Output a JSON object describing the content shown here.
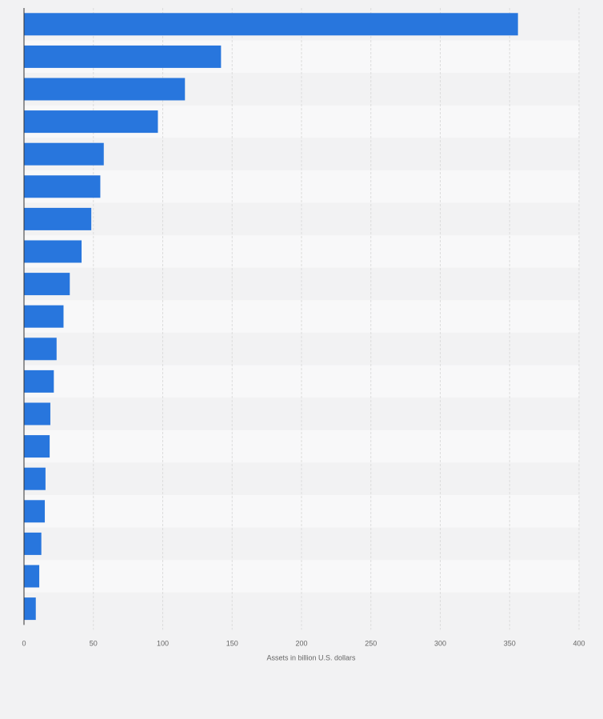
{
  "chart_data": {
    "type": "bar",
    "orientation": "horizontal",
    "title": "",
    "xlabel": "Assets in billion U.S. dollars",
    "ylabel": "",
    "xlim": [
      0,
      400
    ],
    "x_ticks": [
      0,
      50,
      100,
      150,
      200,
      250,
      300,
      350,
      400
    ],
    "grid": true,
    "bar_color": "#2876dd",
    "series": [
      {
        "values": [
          356,
          142,
          116,
          96.5,
          57.5,
          55,
          48.5,
          41.5,
          33,
          28.5,
          23.5,
          21.5,
          19,
          18.5,
          15.5,
          15,
          12.5,
          11,
          8.5
        ]
      }
    ]
  }
}
